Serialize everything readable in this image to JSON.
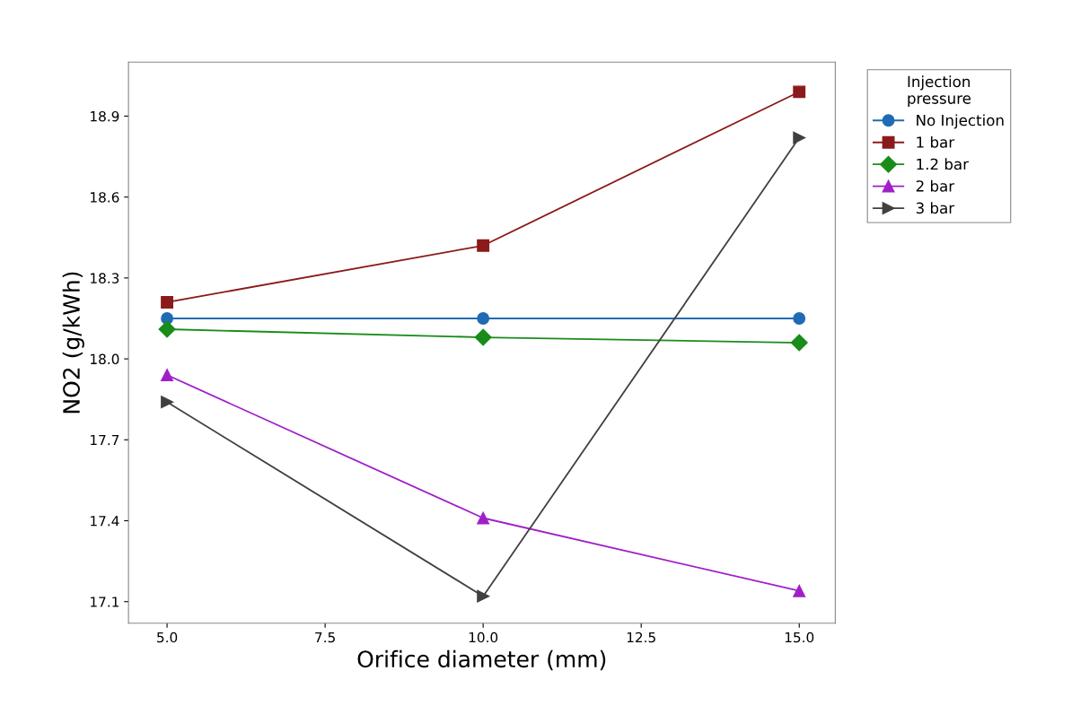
{
  "chart_data": {
    "type": "line",
    "xlabel": "Orifice diameter (mm)",
    "ylabel": "NO2 (g/kWh)",
    "legend_title": "Injection\npressure",
    "legend": "right",
    "grid": false,
    "x": [
      5,
      10,
      15
    ],
    "xlim": [
      4.39,
      15.57
    ],
    "xticks": [
      {
        "value": 5,
        "label": "5.0"
      },
      {
        "value": 7.5,
        "label": "7.5"
      },
      {
        "value": 10,
        "label": "10.0"
      },
      {
        "value": 12.5,
        "label": "12.5"
      },
      {
        "value": 15,
        "label": "15.0"
      }
    ],
    "ylim": [
      17.02,
      19.1
    ],
    "yticks": [
      17.1,
      17.4,
      17.7,
      {
        "value": 18,
        "label": "18.0"
      },
      18.3,
      18.6,
      18.9
    ],
    "series": [
      {
        "name": "No Injection",
        "color": "#1f6cb4",
        "marker": "circle",
        "values": [
          18.15,
          18.15,
          18.15
        ]
      },
      {
        "name": "1 bar",
        "color": "#8b1a1a",
        "marker": "square",
        "values": [
          18.21,
          18.42,
          18.99
        ]
      },
      {
        "name": "1.2 bar",
        "color": "#1a8c1a",
        "marker": "diamond",
        "values": [
          18.11,
          18.08,
          18.06
        ]
      },
      {
        "name": "2 bar",
        "color": "#a020c8",
        "marker": "triangle",
        "values": [
          17.94,
          17.41,
          17.14
        ]
      },
      {
        "name": "3 bar",
        "color": "#404040",
        "marker": "triangle_right",
        "values": [
          17.84,
          17.12,
          18.82
        ]
      }
    ]
  }
}
